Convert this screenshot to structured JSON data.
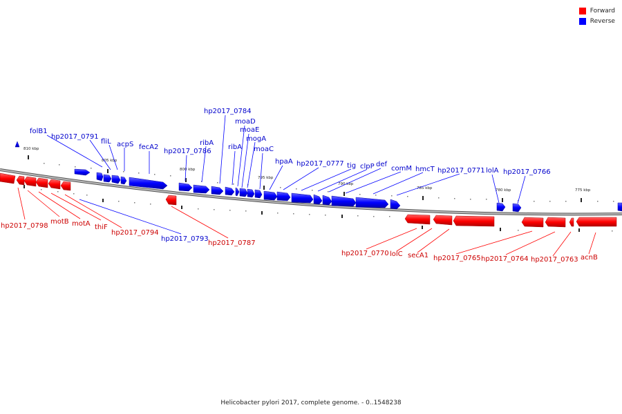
{
  "colors": {
    "forward": "#ff0000",
    "reverse": "#0000ff",
    "backbone": "#888888"
  },
  "legend": [
    {
      "label": "Forward",
      "color": "#ff0000"
    },
    {
      "label": "Reverse",
      "color": "#0000ff"
    }
  ],
  "caption": "Helicobacter pylori 2017, complete genome. - 0..1548238",
  "ticks": [
    "810 kbp",
    "805 kbp",
    "800 kbp",
    "795 kbp",
    "790 kbp",
    "785 kbp",
    "780 kbp",
    "775 kbp"
  ],
  "genes": {
    "reverse": [
      "folB1",
      "hp2017_0791",
      "fliL",
      "acpS",
      "fecA2",
      "hp2017_0786",
      "ribA",
      "hp2017_0784",
      "ribA",
      "moaD",
      "moaE",
      "mogA",
      "moaC",
      "hpaA",
      "hp2017_0777",
      "tig",
      "clpP",
      "def",
      "comM",
      "hmcT",
      "hp2017_0771",
      "lolA",
      "hp2017_0766",
      "hp2017_0793"
    ],
    "forward": [
      "hp2017_0798",
      "motB",
      "motA",
      "thiF",
      "hp2017_0794",
      "hp2017_0787",
      "hp2017_0770",
      "lolC",
      "secA1",
      "hp2017_0765",
      "hp2017_0764",
      "hp2017_0763",
      "acnB"
    ]
  }
}
